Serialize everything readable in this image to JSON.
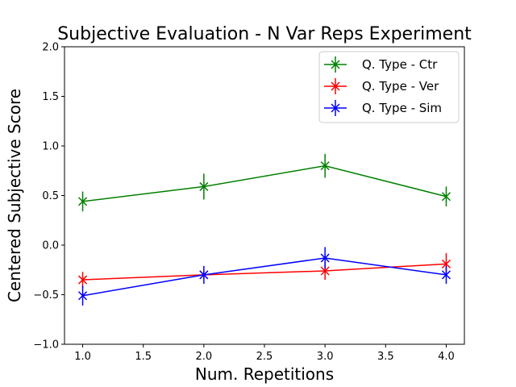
{
  "chart_data": {
    "type": "line",
    "title": "Subjective Evaluation - N Var Reps Experiment",
    "xlabel": "Num. Repetitions",
    "ylabel": "Centered Subjective Score",
    "xlim": [
      0.85,
      4.15
    ],
    "ylim": [
      -1.0,
      2.0
    ],
    "x_ticks": [
      1.0,
      1.5,
      2.0,
      2.5,
      3.0,
      3.5,
      4.0
    ],
    "x_tick_labels": [
      "1.0",
      "1.5",
      "2.0",
      "2.5",
      "3.0",
      "3.5",
      "4.0"
    ],
    "y_ticks": [
      -1.0,
      -0.5,
      0.0,
      0.5,
      1.0,
      1.5,
      2.0
    ],
    "y_tick_labels": [
      "−1.0",
      "−0.5",
      "0.0",
      "0.5",
      "1.0",
      "1.5",
      "2.0"
    ],
    "legend_position": "top-right",
    "x": [
      1,
      2,
      3,
      4
    ],
    "series": [
      {
        "name": "Q. Type - Ctr",
        "color": "#008000",
        "values": [
          0.44,
          0.59,
          0.8,
          0.49
        ],
        "errors": [
          0.1,
          0.13,
          0.12,
          0.1
        ]
      },
      {
        "name": "Q. Type - Ver",
        "color": "#ff0000",
        "values": [
          -0.35,
          -0.3,
          -0.26,
          -0.19
        ],
        "errors": [
          0.08,
          0.04,
          0.09,
          0.11
        ]
      },
      {
        "name": "Q. Type - Sim",
        "color": "#0000ff",
        "values": [
          -0.51,
          -0.3,
          -0.13,
          -0.3
        ],
        "errors": [
          0.1,
          0.09,
          0.11,
          0.09
        ]
      }
    ]
  }
}
